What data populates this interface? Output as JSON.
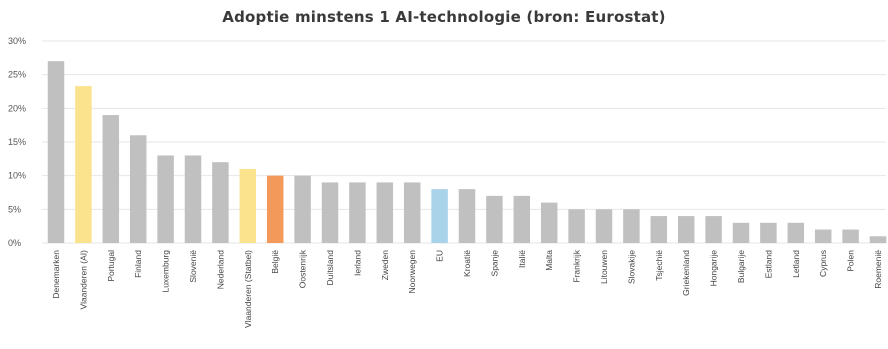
{
  "chart_data": {
    "type": "bar",
    "title": "Adoptie minstens 1 AI-technologie (bron: Eurostat)",
    "xlabel": "",
    "ylabel": "",
    "ylim": [
      0,
      30
    ],
    "yticks": [
      "0%",
      "5%",
      "10%",
      "15%",
      "20%",
      "25%",
      "30%"
    ],
    "grid": true,
    "categories": [
      "Denemarken",
      "Vlaanderen (AI)",
      "Portugal",
      "Finland",
      "Luxemburg",
      "Slovenië",
      "Nederland",
      "Vlaanderen (Statbel)",
      "België",
      "Oostenrijk",
      "Duitsland",
      "Ierland",
      "Zweden",
      "Noorwegen",
      "EU",
      "Kroatië",
      "Spanje",
      "Italië",
      "Malta",
      "Frankrijk",
      "Litouwen",
      "Slovakije",
      "Tsjechië",
      "Griekenland",
      "Hongarije",
      "Bulgarije",
      "Estland",
      "Letland",
      "Cyprus",
      "Polen",
      "Roemenië"
    ],
    "values": [
      27,
      23.3,
      19,
      16,
      13,
      13,
      12,
      11,
      10,
      10,
      9,
      9,
      9,
      9,
      8,
      8,
      7,
      7,
      6,
      5,
      5,
      5,
      4,
      4,
      4,
      3,
      3,
      3,
      2,
      2,
      1
    ],
    "colors": [
      "#c0c0c0",
      "#fbe28c",
      "#c0c0c0",
      "#c0c0c0",
      "#c0c0c0",
      "#c0c0c0",
      "#c0c0c0",
      "#fbe28c",
      "#f39a5a",
      "#c0c0c0",
      "#c0c0c0",
      "#c0c0c0",
      "#c0c0c0",
      "#c0c0c0",
      "#a9d3e8",
      "#c0c0c0",
      "#c0c0c0",
      "#c0c0c0",
      "#c0c0c0",
      "#c0c0c0",
      "#c0c0c0",
      "#c0c0c0",
      "#c0c0c0",
      "#c0c0c0",
      "#c0c0c0",
      "#c0c0c0",
      "#c0c0c0",
      "#c0c0c0",
      "#c0c0c0",
      "#c0c0c0",
      "#c0c0c0"
    ]
  }
}
